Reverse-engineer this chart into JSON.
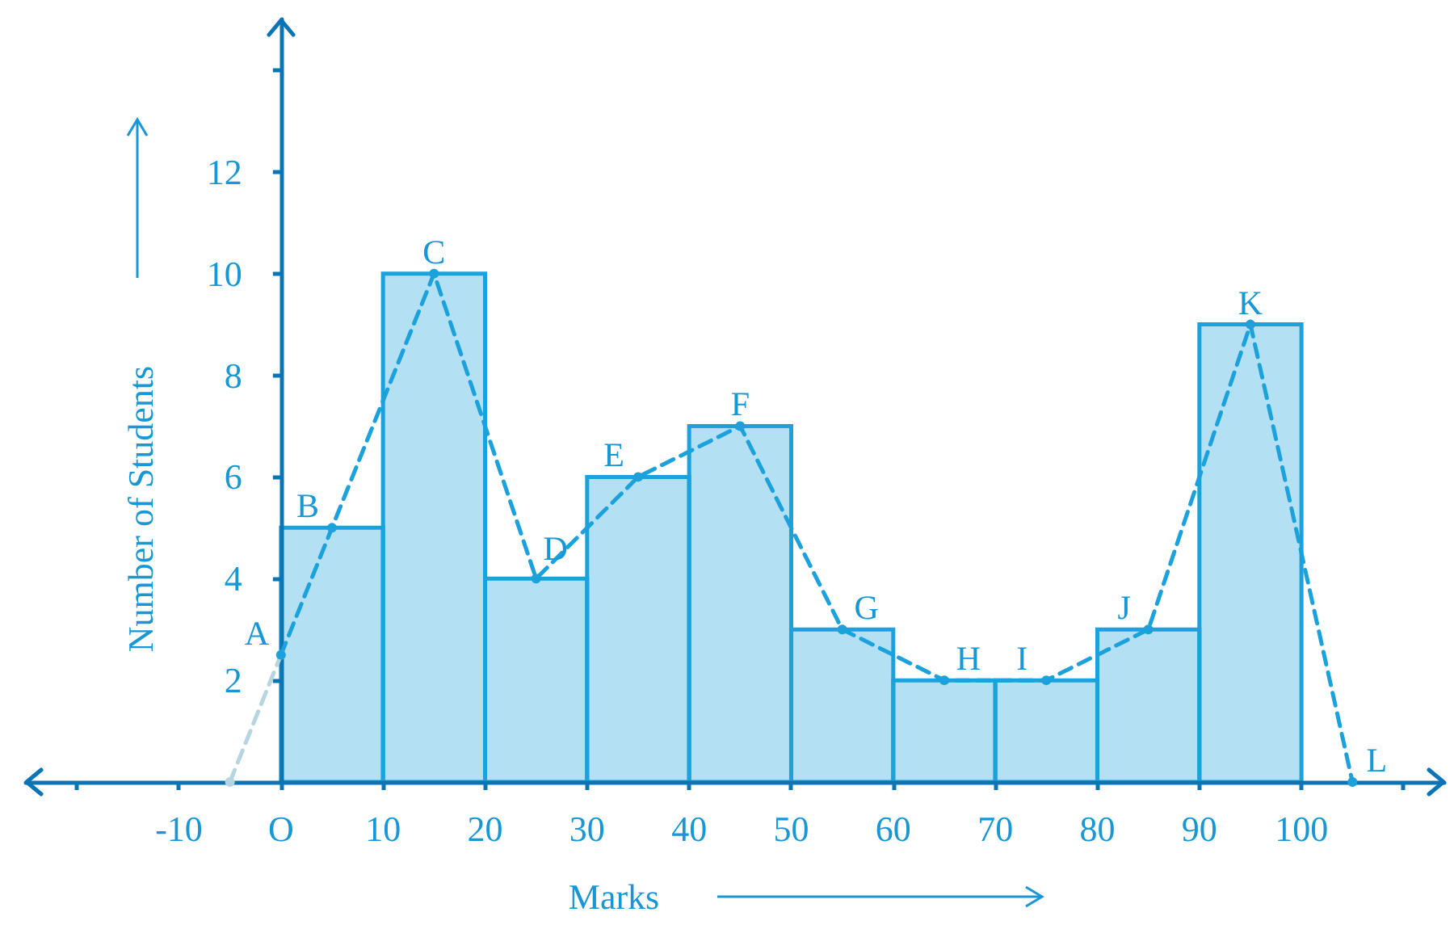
{
  "chart_data": {
    "type": "histogram",
    "xlabel": "Marks",
    "ylabel": "Number of Students",
    "bins": [
      0,
      10,
      20,
      30,
      40,
      50,
      60,
      70,
      80,
      90,
      100
    ],
    "series": [
      {
        "color": "#1ba1dc",
        "values": [
          5,
          10,
          4,
          6,
          7,
          3,
          2,
          2,
          3,
          9
        ]
      },
      {
        "type": "line",
        "color": "#b5d5e3",
        "x": [
          -5,
          0
        ],
        "values": [
          0,
          2.5
        ]
      },
      {
        "type": "line",
        "color": "#1ba1dc",
        "x": [
          0,
          5,
          15,
          25,
          35,
          45,
          55,
          65,
          75,
          85,
          95,
          105
        ],
        "values": [
          2.5,
          5,
          10,
          4,
          6,
          7,
          3,
          2,
          2,
          3,
          9,
          0
        ]
      }
    ],
    "line_style": "dashed",
    "marker": "circle",
    "xlim": [
      -25,
      114
    ],
    "xticks": [
      {
        "value": -20,
        "label": null
      },
      -10,
      {
        "value": 0,
        "label": "O"
      },
      10,
      20,
      30,
      40,
      50,
      60,
      70,
      80,
      90,
      100,
      {
        "value": 110,
        "label": null
      }
    ],
    "ylim": [
      0,
      15
    ],
    "yticks": [
      2,
      4,
      6,
      8,
      10,
      12,
      {
        "value": 14,
        "label": null
      }
    ],
    "annotations": [
      {
        "text": "A",
        "x": 0,
        "y": 2.5
      },
      {
        "text": "B",
        "x": 5,
        "y": 5
      },
      {
        "text": "C",
        "x": 15,
        "y": 10
      },
      {
        "text": "D",
        "x": 25,
        "y": 4
      },
      {
        "text": "E",
        "x": 35,
        "y": 6
      },
      {
        "text": "F",
        "x": 45,
        "y": 7
      },
      {
        "text": "G",
        "x": 55,
        "y": 3
      },
      {
        "text": "H",
        "x": 65,
        "y": 2
      },
      {
        "text": "I",
        "x": 75,
        "y": 2
      },
      {
        "text": "J",
        "x": 85,
        "y": 3
      },
      {
        "text": "K",
        "x": 95,
        "y": 9
      },
      {
        "text": "L",
        "x": 105,
        "y": 0
      }
    ]
  }
}
